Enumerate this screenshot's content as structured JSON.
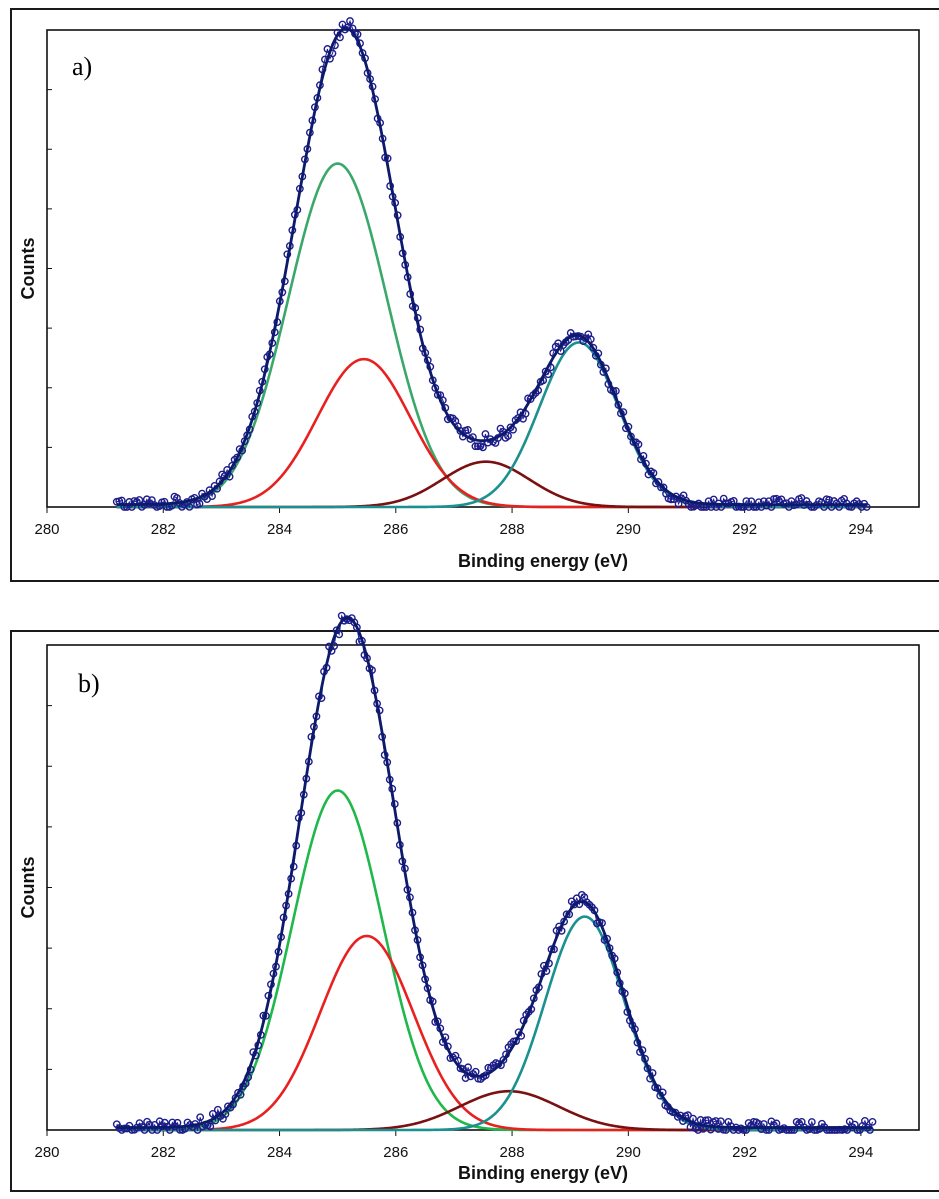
{
  "chart_data": [
    {
      "type": "line",
      "panel_label": "a)",
      "xlabel": "Binding energy (eV)",
      "ylabel": "Counts",
      "xlim": [
        280,
        295
      ],
      "ylim": [
        0,
        1.0
      ],
      "x_ticks": [
        "280",
        "282",
        "284",
        "286",
        "288",
        "290",
        "292",
        "294"
      ],
      "grid": false,
      "data_range": [
        281.2,
        294.1
      ],
      "peaks": [
        {
          "color": "#3aa86b",
          "center": 285.0,
          "sigma": 0.85,
          "amplitude": 0.72
        },
        {
          "color": "#e82020",
          "center": 285.45,
          "sigma": 0.8,
          "amplitude": 0.31
        },
        {
          "color": "#7a1010",
          "center": 287.55,
          "sigma": 0.75,
          "amplitude": 0.095
        },
        {
          "color": "#1a9090",
          "center": 289.15,
          "sigma": 0.68,
          "amplitude": 0.345
        }
      ],
      "envelope_color": "#0d1a6b",
      "points_color": "#1c1c8c"
    },
    {
      "type": "line",
      "panel_label": "b)",
      "xlabel": "Binding energy (eV)",
      "ylabel": "Counts",
      "xlim": [
        280,
        295
      ],
      "ylim": [
        0,
        1.0
      ],
      "x_ticks": [
        "280",
        "282",
        "284",
        "286",
        "288",
        "290",
        "292",
        "294"
      ],
      "grid": false,
      "data_range": [
        281.2,
        294.2
      ],
      "peaks": [
        {
          "color": "#1fb84a",
          "center": 285.0,
          "sigma": 0.78,
          "amplitude": 0.7
        },
        {
          "color": "#e82020",
          "center": 285.5,
          "sigma": 0.8,
          "amplitude": 0.4
        },
        {
          "color": "#7a1010",
          "center": 287.95,
          "sigma": 0.85,
          "amplitude": 0.08
        },
        {
          "color": "#1a9090",
          "center": 289.25,
          "sigma": 0.68,
          "amplitude": 0.44
        }
      ],
      "envelope_color": "#0d1a6b",
      "points_color": "#1c1c8c"
    }
  ]
}
